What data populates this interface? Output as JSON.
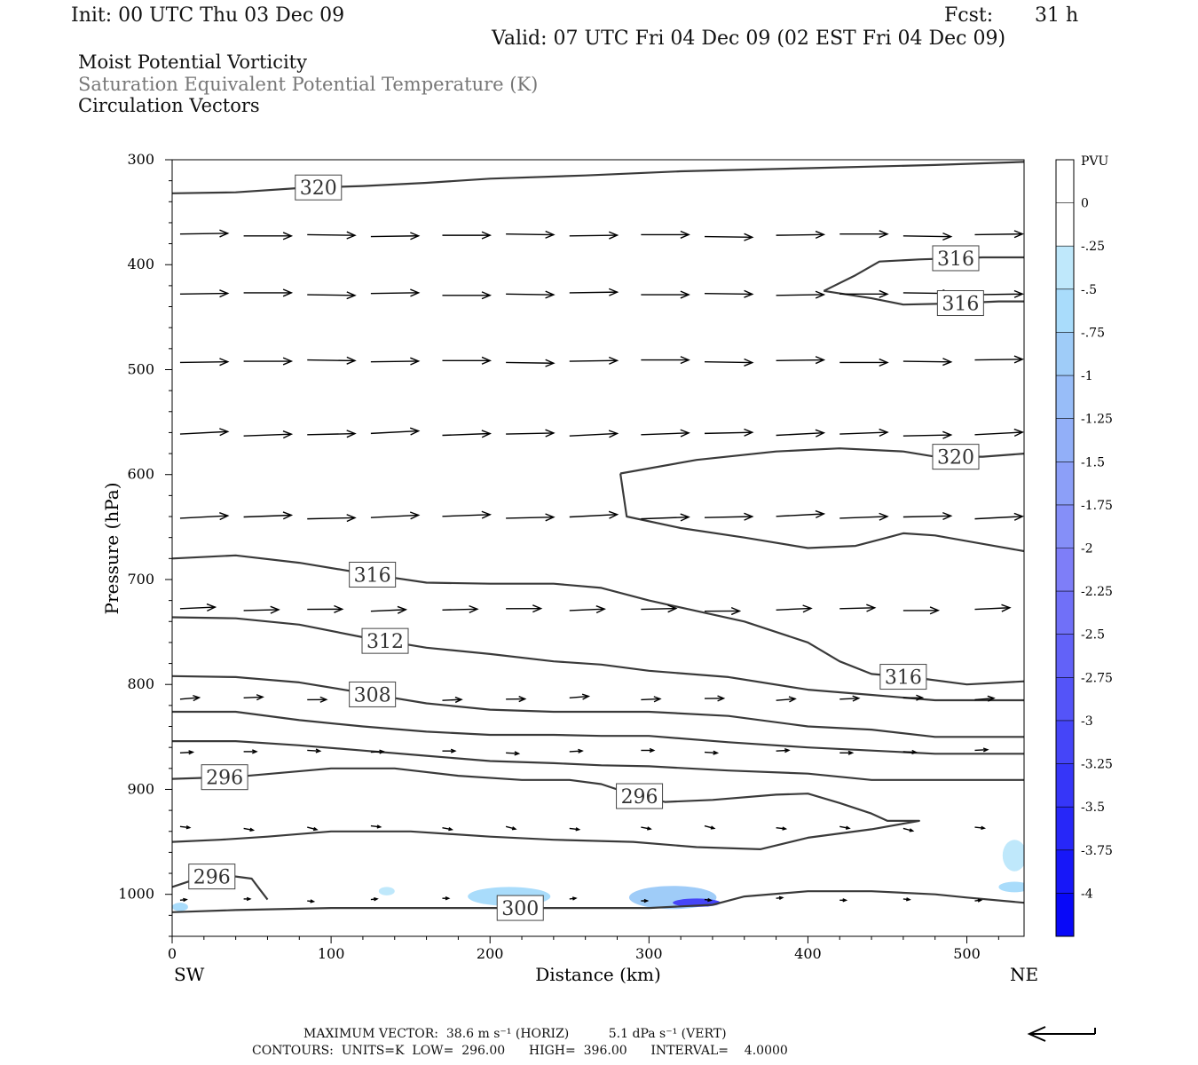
{
  "header": {
    "init": "Init: 00 UTC Thu 03 Dec 09",
    "fcst_label": "Fcst:",
    "fcst_value": "31 h",
    "valid": "Valid: 07 UTC Fri 04 Dec 09 (02 EST Fri 04 Dec 09)"
  },
  "variables": [
    "Moist Potential Vorticity",
    "Saturation Equivalent Potential Temperature (K)",
    "Circulation Vectors"
  ],
  "chart_data": {
    "type": "contour",
    "xlabel": "Distance (km)",
    "ylabel": "Pressure (hPa)",
    "xlim": [
      0,
      536
    ],
    "ylim": [
      1040,
      300
    ],
    "x_ticks": [
      0,
      100,
      200,
      300,
      400,
      500
    ],
    "y_ticks": [
      300,
      400,
      500,
      600,
      700,
      800,
      900,
      1000
    ],
    "x_end_labels": {
      "left": "SW",
      "right": "NE"
    },
    "colorbar": {
      "title": "PVU",
      "labels": [
        "0",
        "-.25",
        "-.5",
        "-.75",
        "-1",
        "-1.25",
        "-1.5",
        "-1.75",
        "-2",
        "-2.25",
        "-2.5",
        "-2.75",
        "-3",
        "-3.25",
        "-3.5",
        "-3.75",
        "-4"
      ],
      "colors": [
        "#ffffff",
        "#ffffff",
        "#bfe8fb",
        "#a9dcfb",
        "#9fccf8",
        "#98bdf8",
        "#92aff8",
        "#8c9ff8",
        "#858ff8",
        "#7e7ef8",
        "#7070f8",
        "#6262f8",
        "#5454f8",
        "#4545f8",
        "#3636f8",
        "#2727f8",
        "#1717f8",
        "#0808f8"
      ]
    },
    "contour_lines": [
      {
        "label": "320",
        "points": [
          [
            0,
            332
          ],
          [
            40,
            331
          ],
          [
            80,
            327
          ],
          [
            120,
            325
          ],
          [
            160,
            322
          ],
          [
            200,
            318
          ],
          [
            260,
            315
          ],
          [
            320,
            311
          ],
          [
            400,
            308
          ],
          [
            480,
            305
          ],
          [
            536,
            302
          ]
        ]
      },
      {
        "label": "320",
        "points": [
          [
            282,
            599
          ],
          [
            330,
            586
          ],
          [
            380,
            578
          ],
          [
            420,
            575
          ],
          [
            460,
            578
          ],
          [
            480,
            583
          ],
          [
            510,
            583
          ],
          [
            536,
            580
          ]
        ]
      },
      {
        "label": "",
        "points": [
          [
            282,
            599
          ],
          [
            286,
            640
          ],
          [
            320,
            651
          ],
          [
            360,
            660
          ],
          [
            400,
            670
          ],
          [
            430,
            668
          ],
          [
            450,
            660
          ],
          [
            460,
            656
          ],
          [
            480,
            658
          ],
          [
            510,
            666
          ],
          [
            536,
            673
          ]
        ]
      },
      {
        "label": "316",
        "points": [
          [
            410,
            425
          ],
          [
            430,
            410
          ],
          [
            445,
            397
          ],
          [
            470,
            395
          ],
          [
            510,
            393
          ],
          [
            536,
            393
          ]
        ]
      },
      {
        "label": "316",
        "points": [
          [
            410,
            425
          ],
          [
            440,
            432
          ],
          [
            460,
            438
          ],
          [
            490,
            437
          ],
          [
            520,
            435
          ],
          [
            536,
            435
          ]
        ]
      },
      {
        "label": "316",
        "points": [
          [
            0,
            680
          ],
          [
            40,
            677
          ],
          [
            80,
            684
          ],
          [
            120,
            694
          ],
          [
            160,
            703
          ],
          [
            200,
            704
          ],
          [
            240,
            704
          ],
          [
            270,
            708
          ],
          [
            300,
            720
          ],
          [
            360,
            740
          ],
          [
            400,
            760
          ],
          [
            420,
            778
          ],
          [
            440,
            790
          ],
          [
            470,
            794
          ],
          [
            500,
            800
          ],
          [
            536,
            797
          ]
        ]
      },
      {
        "label": "312",
        "points": [
          [
            0,
            736
          ],
          [
            40,
            737
          ],
          [
            80,
            743
          ],
          [
            120,
            755
          ],
          [
            160,
            765
          ],
          [
            200,
            771
          ],
          [
            240,
            778
          ],
          [
            270,
            781
          ],
          [
            300,
            787
          ],
          [
            350,
            793
          ],
          [
            400,
            805
          ],
          [
            440,
            810
          ],
          [
            480,
            815
          ],
          [
            536,
            815
          ]
        ]
      },
      {
        "label": "308",
        "points": [
          [
            0,
            792
          ],
          [
            40,
            793
          ],
          [
            80,
            798
          ],
          [
            120,
            808
          ],
          [
            160,
            818
          ],
          [
            200,
            824
          ],
          [
            240,
            826
          ],
          [
            270,
            826
          ],
          [
            300,
            826
          ],
          [
            350,
            830
          ],
          [
            400,
            840
          ],
          [
            440,
            843
          ],
          [
            480,
            850
          ],
          [
            536,
            850
          ]
        ]
      },
      {
        "label": "",
        "points": [
          [
            0,
            826
          ],
          [
            40,
            826
          ],
          [
            80,
            834
          ],
          [
            120,
            840
          ],
          [
            160,
            845
          ],
          [
            200,
            848
          ],
          [
            240,
            848
          ],
          [
            270,
            849
          ],
          [
            300,
            849
          ],
          [
            350,
            855
          ],
          [
            400,
            860
          ],
          [
            440,
            863
          ],
          [
            480,
            866
          ],
          [
            536,
            866
          ]
        ]
      },
      {
        "label": "",
        "points": [
          [
            0,
            854
          ],
          [
            40,
            854
          ],
          [
            80,
            858
          ],
          [
            120,
            863
          ],
          [
            160,
            868
          ],
          [
            200,
            873
          ],
          [
            240,
            875
          ],
          [
            270,
            877
          ],
          [
            300,
            878
          ],
          [
            350,
            882
          ],
          [
            400,
            885
          ],
          [
            440,
            891
          ],
          [
            480,
            891
          ],
          [
            536,
            891
          ]
        ]
      },
      {
        "label": "296",
        "points": [
          [
            0,
            890
          ],
          [
            40,
            888
          ],
          [
            100,
            880
          ],
          [
            140,
            880
          ],
          [
            180,
            887
          ],
          [
            220,
            891
          ],
          [
            250,
            891
          ],
          [
            270,
            895
          ],
          [
            290,
            905
          ],
          [
            310,
            912
          ],
          [
            340,
            910
          ],
          [
            380,
            905
          ],
          [
            400,
            904
          ],
          [
            420,
            913
          ],
          [
            440,
            923
          ],
          [
            450,
            930
          ],
          [
            470,
            930
          ],
          [
            440,
            938
          ],
          [
            400,
            946
          ],
          [
            370,
            957
          ],
          [
            330,
            955
          ],
          [
            290,
            950
          ],
          [
            240,
            948
          ],
          [
            200,
            945
          ],
          [
            150,
            940
          ],
          [
            100,
            940
          ],
          [
            60,
            945
          ],
          [
            30,
            948
          ],
          [
            0,
            950
          ]
        ]
      },
      {
        "label": "296",
        "points": [
          [
            0,
            993
          ],
          [
            20,
            983
          ],
          [
            40,
            983
          ],
          [
            50,
            985
          ],
          [
            55,
            995
          ],
          [
            60,
            1005
          ]
        ]
      },
      {
        "label": "300",
        "points": [
          [
            0,
            1017
          ],
          [
            40,
            1015
          ],
          [
            100,
            1013
          ],
          [
            160,
            1013
          ],
          [
            200,
            1013
          ],
          [
            240,
            1013
          ],
          [
            300,
            1013
          ],
          [
            340,
            1010
          ],
          [
            360,
            1002
          ],
          [
            400,
            997
          ],
          [
            440,
            997
          ],
          [
            480,
            1000
          ],
          [
            500,
            1003
          ],
          [
            536,
            1008
          ]
        ]
      }
    ],
    "pv_patches": [
      {
        "x": 5,
        "p": 1012,
        "w": 10,
        "h": 8,
        "value": -0.5
      },
      {
        "x": 135,
        "p": 997,
        "w": 10,
        "h": 8,
        "value": -0.25
      },
      {
        "x": 212,
        "p": 1002,
        "w": 52,
        "h": 18,
        "value": -0.5
      },
      {
        "x": 315,
        "p": 1003,
        "w": 55,
        "h": 22,
        "value": -0.75
      },
      {
        "x": 330,
        "p": 1008,
        "w": 30,
        "h": 8,
        "value": -3.0
      },
      {
        "x": 530,
        "p": 963,
        "w": 15,
        "h": 30,
        "value": -0.25
      },
      {
        "x": 530,
        "p": 993,
        "w": 20,
        "h": 10,
        "value": -0.5
      }
    ],
    "vector_rows": [
      {
        "p": 372,
        "len_km": 30,
        "dp": 0
      },
      {
        "p": 428,
        "len_km": 30,
        "dp": 0
      },
      {
        "p": 492,
        "len_km": 30,
        "dp": 0
      },
      {
        "p": 562,
        "len_km": 30,
        "dp": -2
      },
      {
        "p": 641,
        "len_km": 30,
        "dp": -2
      },
      {
        "p": 729,
        "len_km": 22,
        "dp": -1
      },
      {
        "p": 814,
        "len_km": 12,
        "dp": -1
      },
      {
        "p": 864,
        "len_km": 8,
        "dp": 0
      },
      {
        "p": 936,
        "len_km": 6,
        "dp": 2
      },
      {
        "p": 1005,
        "len_km": 4,
        "dp": 0
      }
    ],
    "vector_x": [
      5,
      45,
      85,
      125,
      170,
      210,
      250,
      295,
      335,
      380,
      420,
      460,
      505,
      536
    ],
    "vector_scale_arrow": true
  },
  "footer": {
    "max_vector": "MAXIMUM VECTOR:  38.6 m s⁻¹ (HORIZ)          5.1 dPa s⁻¹ (VERT)",
    "contours": "CONTOURS:  UNITS=K  LOW=  296.00      HIGH=  396.00      INTERVAL=    4.0000"
  }
}
